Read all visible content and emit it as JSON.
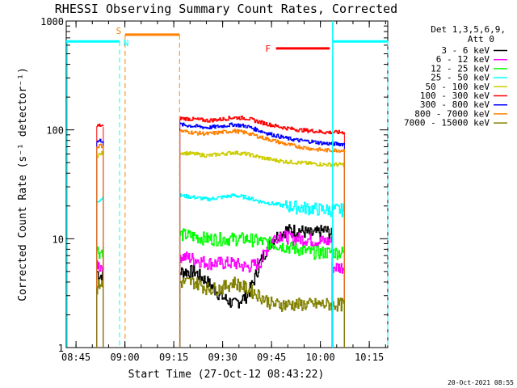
{
  "chart_data": {
    "type": "line",
    "title": "RHESSI Observing Summary Count Rates, Corrected",
    "xlabel": "Start Time (27-Oct-12 08:43:22)",
    "ylabel": "Corrected Count Rate (s⁻¹ detector⁻¹)",
    "yscale": "log",
    "ylim": [
      1,
      1000
    ],
    "xlim_minutes": [
      -1.37,
      97.3
    ],
    "xticks": [
      {
        "label": "08:45",
        "min": 1.63
      },
      {
        "label": "09:00",
        "min": 16.63
      },
      {
        "label": "09:15",
        "min": 31.63
      },
      {
        "label": "09:30",
        "min": 46.63
      },
      {
        "label": "09:45",
        "min": 61.63
      },
      {
        "label": "10:00",
        "min": 76.63
      },
      {
        "label": "10:15",
        "min": 91.63
      }
    ],
    "yticks": [
      {
        "label": "1",
        "value": 1
      },
      {
        "label": "10",
        "value": 10
      },
      {
        "label": "100",
        "value": 100
      },
      {
        "label": "1000",
        "value": 1000
      }
    ],
    "legend": {
      "header1": "Det 1,3,5,6,9,",
      "header2": "Att 0",
      "placement": "right"
    },
    "series": [
      {
        "name": "3 - 6 keV",
        "color": "#000000",
        "segments": [
          [
            [
              8,
              5
            ],
            [
              9,
              4.5
            ],
            [
              10,
              5
            ]
          ],
          [
            [
              33.5,
              5
            ],
            [
              38,
              5
            ],
            [
              42,
              4
            ],
            [
              46,
              3
            ],
            [
              50,
              2.5
            ],
            [
              54,
              3
            ],
            [
              56,
              4
            ],
            [
              58,
              6
            ],
            [
              60,
              8
            ],
            [
              62,
              10
            ],
            [
              66,
              12
            ],
            [
              70,
              12
            ],
            [
              74,
              11
            ],
            [
              78,
              12
            ],
            [
              80.2,
              11
            ]
          ]
        ]
      },
      {
        "name": "6 - 12 keV",
        "color": "#ff00ff",
        "segments": [
          [
            [
              8,
              6
            ],
            [
              9,
              5.5
            ],
            [
              10,
              6
            ]
          ],
          [
            [
              33.5,
              7
            ],
            [
              38,
              6.5
            ],
            [
              42,
              6
            ],
            [
              46,
              6
            ],
            [
              50,
              6
            ],
            [
              54,
              5.5
            ],
            [
              58,
              6
            ],
            [
              60,
              8
            ],
            [
              62,
              10
            ],
            [
              64,
              11
            ],
            [
              68,
              10
            ],
            [
              72,
              10
            ],
            [
              76,
              9.5
            ],
            [
              80.2,
              9.5
            ]
          ],
          [
            [
              80.5,
              5.5
            ],
            [
              84,
              5.5
            ]
          ]
        ]
      },
      {
        "name": "12 - 25 keV",
        "color": "#00ff00",
        "segments": [
          [
            [
              8,
              8
            ],
            [
              9,
              7.5
            ],
            [
              10,
              8
            ]
          ],
          [
            [
              33.5,
              11
            ],
            [
              38,
              10.5
            ],
            [
              42,
              10
            ],
            [
              46,
              10
            ],
            [
              50,
              10
            ],
            [
              54,
              10
            ],
            [
              58,
              9.5
            ],
            [
              62,
              9
            ],
            [
              66,
              8.5
            ],
            [
              70,
              8
            ],
            [
              74,
              7.5
            ],
            [
              78,
              7.5
            ],
            [
              84,
              7.5
            ]
          ]
        ]
      },
      {
        "name": "25 - 50 keV",
        "color": "#00ffff",
        "segments": [
          [
            [
              8,
              22
            ],
            [
              9,
              23
            ],
            [
              10,
              24
            ]
          ],
          [
            [
              33.5,
              25
            ],
            [
              38,
              24
            ],
            [
              42,
              23
            ],
            [
              46,
              24
            ],
            [
              50,
              25
            ],
            [
              54,
              24
            ],
            [
              58,
              22
            ],
            [
              62,
              21
            ],
            [
              66,
              20
            ],
            [
              70,
              19.5
            ],
            [
              74,
              19
            ],
            [
              78,
              18.5
            ],
            [
              84,
              18.5
            ]
          ]
        ]
      },
      {
        "name": "50 - 100 keV",
        "color": "#cccc00",
        "segments": [
          [
            [
              8,
              58
            ],
            [
              9,
              60
            ],
            [
              10,
              62
            ]
          ],
          [
            [
              33.5,
              62
            ],
            [
              38,
              60
            ],
            [
              42,
              58
            ],
            [
              46,
              60
            ],
            [
              50,
              62
            ],
            [
              54,
              60
            ],
            [
              58,
              56
            ],
            [
              62,
              53
            ],
            [
              66,
              51
            ],
            [
              70,
              50
            ],
            [
              74,
              49
            ],
            [
              78,
              48
            ],
            [
              84,
              48
            ]
          ]
        ]
      },
      {
        "name": "100 - 300 keV",
        "color": "#ff0000",
        "segments": [
          [
            [
              8,
              108
            ],
            [
              9,
              110
            ],
            [
              10,
              107
            ]
          ],
          [
            [
              33.5,
              128
            ],
            [
              38,
              125
            ],
            [
              42,
              122
            ],
            [
              46,
              125
            ],
            [
              50,
              130
            ],
            [
              54,
              128
            ],
            [
              58,
              118
            ],
            [
              62,
              110
            ],
            [
              66,
              104
            ],
            [
              70,
              100
            ],
            [
              74,
              98
            ],
            [
              78,
              95
            ],
            [
              84,
              95
            ]
          ]
        ]
      },
      {
        "name": "300 - 800 keV",
        "color": "#0000ff",
        "segments": [
          [
            [
              8,
              78
            ],
            [
              9,
              80
            ],
            [
              10,
              79
            ]
          ],
          [
            [
              33.5,
              112
            ],
            [
              38,
              108
            ],
            [
              42,
              105
            ],
            [
              46,
              108
            ],
            [
              50,
              112
            ],
            [
              54,
              108
            ],
            [
              58,
              98
            ],
            [
              62,
              90
            ],
            [
              66,
              84
            ],
            [
              70,
              80
            ],
            [
              74,
              78
            ],
            [
              78,
              75
            ],
            [
              84,
              74
            ]
          ]
        ]
      },
      {
        "name": "800 - 7000 keV",
        "color": "#ff8000",
        "segments": [
          [
            [
              8,
              70
            ],
            [
              9,
              72
            ],
            [
              10,
              71
            ]
          ],
          [
            [
              33.5,
              98
            ],
            [
              38,
              94
            ],
            [
              42,
              92
            ],
            [
              46,
              95
            ],
            [
              50,
              98
            ],
            [
              54,
              94
            ],
            [
              58,
              86
            ],
            [
              62,
              80
            ],
            [
              66,
              74
            ],
            [
              70,
              70
            ],
            [
              74,
              67
            ],
            [
              78,
              65
            ],
            [
              84,
              65
            ]
          ]
        ]
      },
      {
        "name": "7000 - 15000 keV",
        "color": "#808000",
        "segments": [
          [
            [
              8,
              3.5
            ],
            [
              9,
              4
            ],
            [
              10,
              3.5
            ]
          ],
          [
            [
              33.5,
              4
            ],
            [
              38,
              4
            ],
            [
              42,
              3.5
            ],
            [
              46,
              3.5
            ],
            [
              50,
              4
            ],
            [
              54,
              3.5
            ],
            [
              58,
              3
            ],
            [
              62,
              2.5
            ],
            [
              66,
              2.5
            ],
            [
              70,
              2.5
            ],
            [
              74,
              2.5
            ],
            [
              78,
              2.5
            ],
            [
              84,
              2.5
            ]
          ]
        ]
      }
    ],
    "annotations": {
      "saa": {
        "label": "S",
        "color": "#ff8000",
        "start_min": 16.7,
        "end_min": 33.4,
        "level": 750
      },
      "night": {
        "label": "N",
        "color": "#00ffff",
        "level": 650,
        "intervals": [
          [
            -1.37,
            15.0
          ],
          [
            80.4,
            97.3
          ]
        ]
      },
      "flare": {
        "label": "F",
        "color": "#ff0000",
        "start_min": 63.0,
        "end_min": 79.5,
        "level": 560
      }
    },
    "grid": false
  },
  "footer": {
    "timestamp": "20-Oct-2021 08:55"
  }
}
